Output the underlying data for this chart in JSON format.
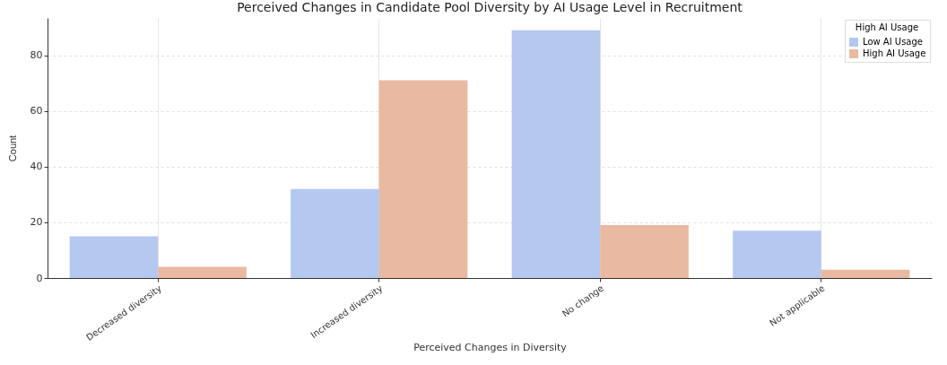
{
  "chart_data": {
    "type": "bar",
    "title": "Perceived Changes in Candidate Pool Diversity by AI Usage Level in Recruitment",
    "xlabel": "Perceived Changes in Diversity",
    "ylabel": "Count",
    "legend_title": "High AI Usage",
    "categories": [
      "Decreased diversity",
      "Increased diversity",
      "No change",
      "Not applicable"
    ],
    "series": [
      {
        "name": "Low AI Usage",
        "color": "#b4c8f0",
        "values": [
          15,
          32,
          89,
          17
        ]
      },
      {
        "name": "High AI Usage",
        "color": "#e9b9a1",
        "values": [
          4,
          71,
          19,
          3
        ]
      }
    ],
    "ylim": [
      0,
      93.4
    ],
    "yticks": [
      0,
      20,
      40,
      60,
      80
    ],
    "grid": true,
    "legend": "top right"
  }
}
